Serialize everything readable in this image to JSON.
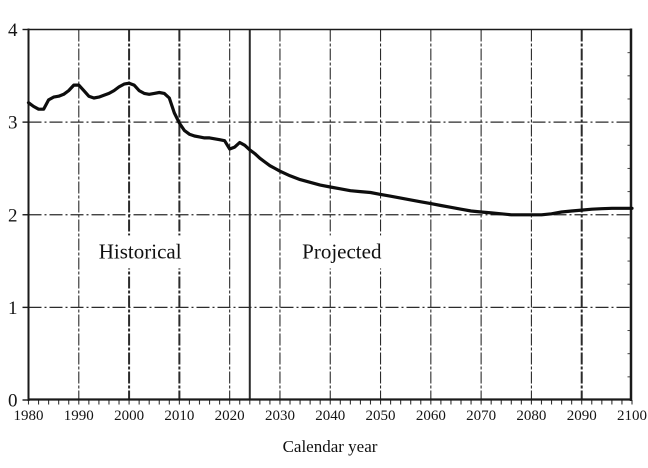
{
  "chart_data": {
    "type": "line",
    "xlabel": "Calendar year",
    "ylabel": "",
    "xlim": [
      1980,
      2100
    ],
    "ylim": [
      0,
      4
    ],
    "x_ticks": [
      1980,
      1990,
      2000,
      2010,
      2020,
      2030,
      2040,
      2050,
      2060,
      2070,
      2080,
      2090,
      2100
    ],
    "y_ticks": [
      0,
      1,
      2,
      3,
      4
    ],
    "x_minor_tick_step": 2,
    "right_axis_minor_tick_step": 0.25,
    "grid": "dash-dot",
    "horizontal_gridlines_at": [
      1,
      2,
      3
    ],
    "vertical_gridlines_at": [
      1990,
      2000,
      2010,
      2020,
      2030,
      2040,
      2050,
      2060,
      2070,
      2080,
      2090
    ],
    "emphasized_gridline_years": [
      2000,
      2010,
      2090
    ],
    "historical_projected_boundary_year": 2024,
    "annotations": [
      {
        "label": "Historical",
        "x": 2002.2,
        "y": 1.6
      },
      {
        "label": "Projected",
        "x": 2042.3,
        "y": 1.6
      }
    ],
    "series": [
      {
        "points": [
          [
            1980,
            3.21
          ],
          [
            1981,
            3.17
          ],
          [
            1982,
            3.14
          ],
          [
            1983,
            3.14
          ],
          [
            1984,
            3.24
          ],
          [
            1985,
            3.27
          ],
          [
            1986,
            3.28
          ],
          [
            1987,
            3.3
          ],
          [
            1988,
            3.34
          ],
          [
            1989,
            3.4
          ],
          [
            1990,
            3.4
          ],
          [
            1991,
            3.34
          ],
          [
            1992,
            3.28
          ],
          [
            1993,
            3.26
          ],
          [
            1994,
            3.27
          ],
          [
            1995,
            3.29
          ],
          [
            1996,
            3.31
          ],
          [
            1997,
            3.34
          ],
          [
            1998,
            3.38
          ],
          [
            1999,
            3.41
          ],
          [
            2000,
            3.42
          ],
          [
            2001,
            3.4
          ],
          [
            2002,
            3.34
          ],
          [
            2003,
            3.31
          ],
          [
            2004,
            3.3
          ],
          [
            2005,
            3.31
          ],
          [
            2006,
            3.32
          ],
          [
            2007,
            3.31
          ],
          [
            2008,
            3.26
          ],
          [
            2009,
            3.1
          ],
          [
            2010,
            2.99
          ],
          [
            2011,
            2.91
          ],
          [
            2012,
            2.87
          ],
          [
            2013,
            2.85
          ],
          [
            2014,
            2.84
          ],
          [
            2015,
            2.83
          ],
          [
            2016,
            2.83
          ],
          [
            2017,
            2.82
          ],
          [
            2018,
            2.81
          ],
          [
            2019,
            2.8
          ],
          [
            2020,
            2.71
          ],
          [
            2021,
            2.73
          ],
          [
            2022,
            2.78
          ],
          [
            2023,
            2.75
          ],
          [
            2024,
            2.7
          ],
          [
            2025,
            2.66
          ],
          [
            2026,
            2.61
          ],
          [
            2027,
            2.57
          ],
          [
            2028,
            2.53
          ],
          [
            2029,
            2.5
          ],
          [
            2030,
            2.47
          ],
          [
            2032,
            2.42
          ],
          [
            2034,
            2.38
          ],
          [
            2036,
            2.35
          ],
          [
            2038,
            2.32
          ],
          [
            2040,
            2.3
          ],
          [
            2042,
            2.28
          ],
          [
            2044,
            2.26
          ],
          [
            2046,
            2.25
          ],
          [
            2048,
            2.24
          ],
          [
            2050,
            2.22
          ],
          [
            2052,
            2.2
          ],
          [
            2054,
            2.18
          ],
          [
            2056,
            2.16
          ],
          [
            2058,
            2.14
          ],
          [
            2060,
            2.12
          ],
          [
            2062,
            2.1
          ],
          [
            2064,
            2.08
          ],
          [
            2066,
            2.06
          ],
          [
            2068,
            2.04
          ],
          [
            2070,
            2.03
          ],
          [
            2072,
            2.02
          ],
          [
            2074,
            2.01
          ],
          [
            2076,
            2.0
          ],
          [
            2078,
            2.0
          ],
          [
            2080,
            2.0
          ],
          [
            2082,
            2.0
          ],
          [
            2084,
            2.01
          ],
          [
            2086,
            2.03
          ],
          [
            2088,
            2.04
          ],
          [
            2090,
            2.05
          ],
          [
            2092,
            2.06
          ],
          [
            2094,
            2.065
          ],
          [
            2096,
            2.07
          ],
          [
            2098,
            2.07
          ],
          [
            2100,
            2.07
          ]
        ]
      }
    ]
  },
  "colors": {
    "background": "#ffffff",
    "axis": "#1a1a1a",
    "grid": "#2b2b2b",
    "curve": "#0d0d0d",
    "text": "#151515"
  }
}
